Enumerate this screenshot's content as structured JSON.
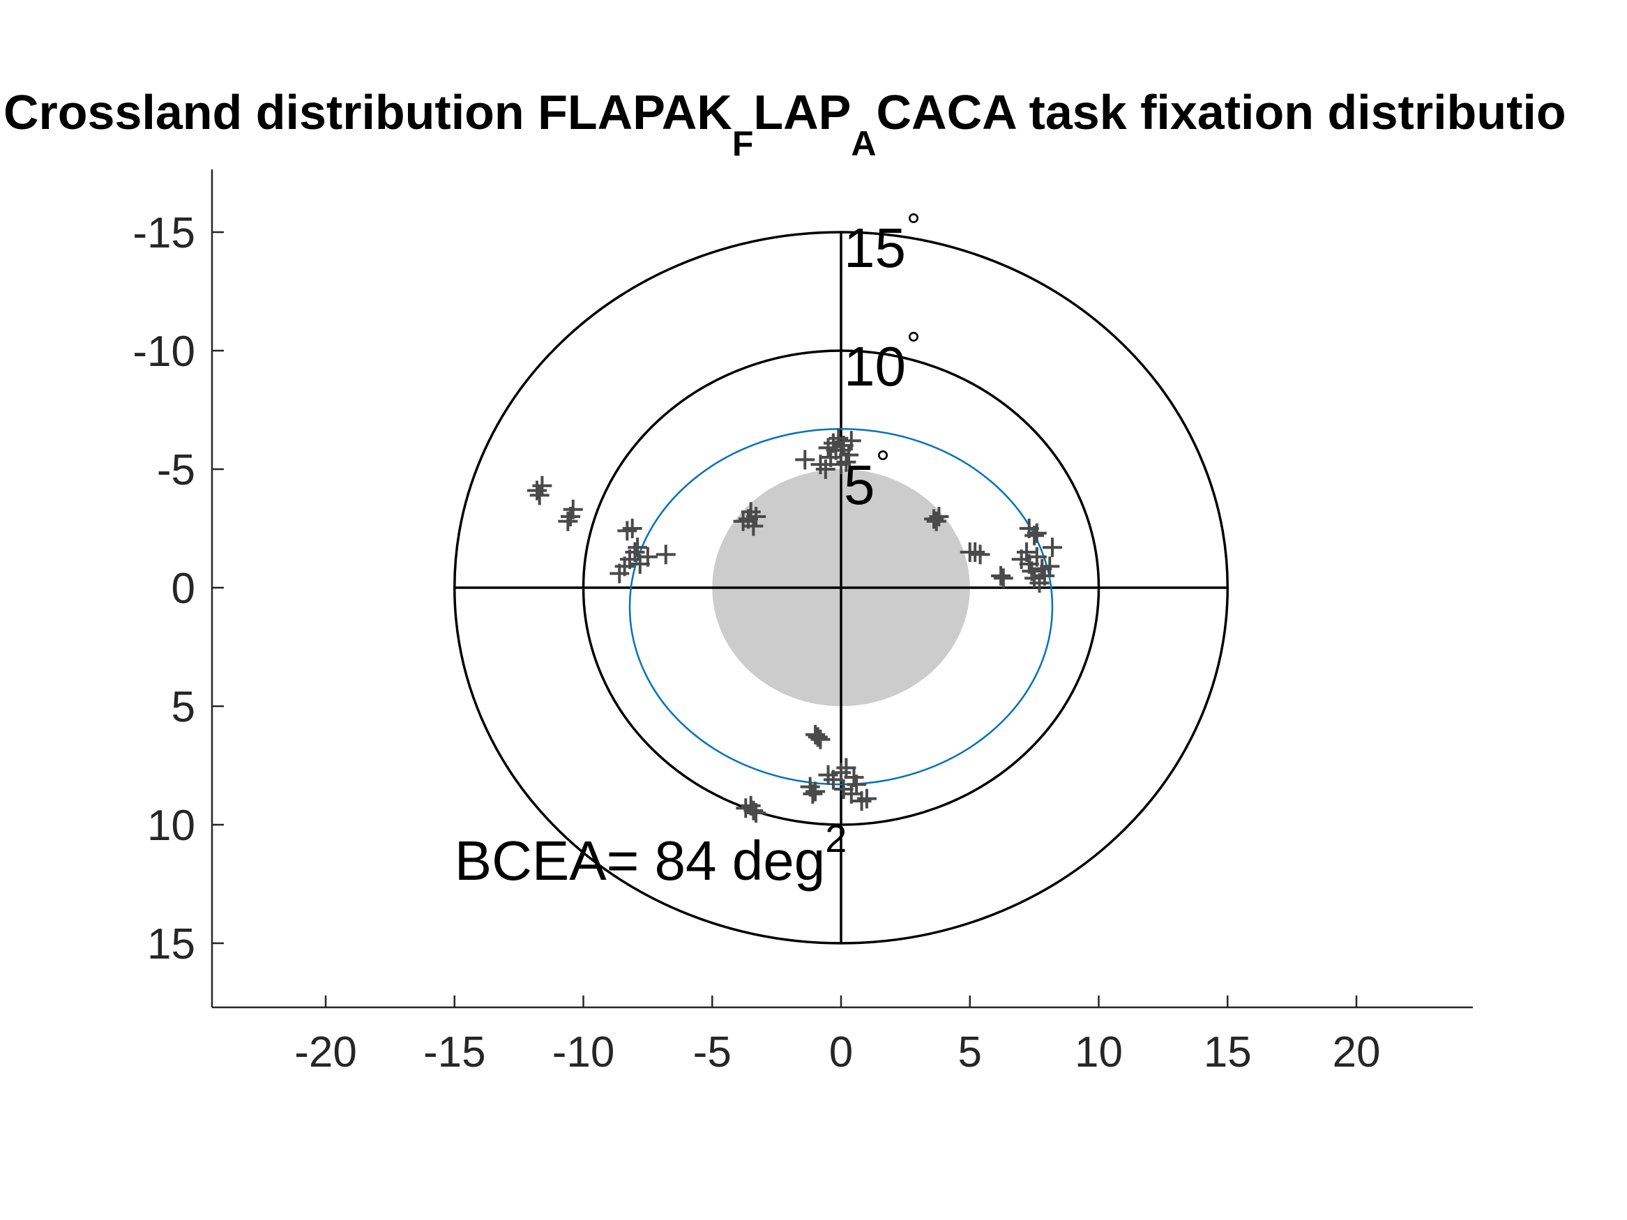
{
  "chart_data": {
    "type": "scatter",
    "title": {
      "parts": [
        {
          "text": "Crossland distribution FLAPAK",
          "sub": false
        },
        {
          "text": "F",
          "sub": true
        },
        {
          "text": "LAP",
          "sub": false
        },
        {
          "text": "A",
          "sub": true
        },
        {
          "text": "CACA task fixation distributio",
          "sub": false
        }
      ]
    },
    "xlabel": "",
    "ylabel": "",
    "xlim": [
      -24.5,
      24.5
    ],
    "ylim": [
      17.7,
      -17.7
    ],
    "y_axis_reversed": true,
    "grid": false,
    "x_ticks": [
      {
        "value": -20,
        "label": "-20"
      },
      {
        "value": -15,
        "label": "-15"
      },
      {
        "value": -10,
        "label": "-10"
      },
      {
        "value": -5,
        "label": "-5"
      },
      {
        "value": 0,
        "label": "0"
      },
      {
        "value": 5,
        "label": "5"
      },
      {
        "value": 10,
        "label": "10"
      },
      {
        "value": 15,
        "label": "15"
      },
      {
        "value": 20,
        "label": "20"
      }
    ],
    "y_ticks": [
      {
        "value": -15,
        "label": "-15"
      },
      {
        "value": -10,
        "label": "-10"
      },
      {
        "value": -5,
        "label": "-5"
      },
      {
        "value": 0,
        "label": "0"
      },
      {
        "value": 5,
        "label": "5"
      },
      {
        "value": 10,
        "label": "10"
      },
      {
        "value": 15,
        "label": "15"
      }
    ],
    "rings": [
      {
        "radius": 5,
        "label": "5",
        "degree_symbol": "°"
      },
      {
        "radius": 10,
        "label": "10",
        "degree_symbol": "°"
      },
      {
        "radius": 15,
        "label": "15",
        "degree_symbol": "°"
      }
    ],
    "central_disc": {
      "radius": 5,
      "color": "#cccccc"
    },
    "bcea_ellipse": {
      "cx": 0,
      "cy": 0.8,
      "rx": 8.2,
      "ry": 7.5,
      "color": "#0072BD"
    },
    "annotation": {
      "text": "BCEA= 84 deg",
      "sup": "2",
      "x": -15,
      "y": 11.5
    },
    "marker": "+",
    "marker_color": "#4a4a4a",
    "points": [
      [
        -0.2,
        -5.8
      ],
      [
        0.1,
        -6.0
      ],
      [
        -0.4,
        -5.5
      ],
      [
        0.0,
        -5.2
      ],
      [
        -0.6,
        -5.0
      ],
      [
        0.3,
        -5.6
      ],
      [
        -0.1,
        -6.3
      ],
      [
        0.2,
        -5.3
      ],
      [
        -0.3,
        -6.1
      ],
      [
        -1.4,
        -5.4
      ],
      [
        -0.8,
        -5.2
      ],
      [
        0.0,
        -5.8
      ],
      [
        -0.5,
        -5.9
      ],
      [
        0.4,
        -6.2
      ],
      [
        -3.5,
        -3.2
      ],
      [
        -3.6,
        -2.9
      ],
      [
        -3.4,
        -2.6
      ],
      [
        -3.8,
        -2.8
      ],
      [
        -3.3,
        -3.0
      ],
      [
        -8.6,
        -0.6
      ],
      [
        -8.2,
        -1.2
      ],
      [
        -8.0,
        -1.5
      ],
      [
        -7.8,
        -1.0
      ],
      [
        -7.5,
        -1.3
      ],
      [
        -7.9,
        -1.7
      ],
      [
        -6.8,
        -1.4
      ],
      [
        -8.3,
        -2.4
      ],
      [
        -8.1,
        -2.5
      ],
      [
        -8.4,
        -0.9
      ],
      [
        -10.5,
        -3.0
      ],
      [
        -10.6,
        -2.8
      ],
      [
        -10.4,
        -3.3
      ],
      [
        -11.7,
        -3.9
      ],
      [
        -11.8,
        -4.1
      ],
      [
        -11.6,
        -4.3
      ],
      [
        7.5,
        -0.4
      ],
      [
        7.8,
        -0.8
      ],
      [
        7.3,
        -1.0
      ],
      [
        7.6,
        -1.3
      ],
      [
        7.9,
        -0.5
      ],
      [
        7.2,
        -1.5
      ],
      [
        7.0,
        -1.2
      ],
      [
        8.1,
        -0.9
      ],
      [
        7.7,
        -0.2
      ],
      [
        7.4,
        -0.7
      ],
      [
        6.3,
        -0.4
      ],
      [
        6.2,
        -0.5
      ],
      [
        5.4,
        -1.4
      ],
      [
        5.2,
        -1.5
      ],
      [
        5.0,
        -1.5
      ],
      [
        8.2,
        -1.7
      ],
      [
        7.5,
        -2.2
      ],
      [
        7.3,
        -2.5
      ],
      [
        7.6,
        -2.3
      ],
      [
        3.7,
        -2.8
      ],
      [
        3.8,
        -3.0
      ],
      [
        3.6,
        -2.9
      ],
      [
        -0.9,
        6.3
      ],
      [
        -0.8,
        6.4
      ],
      [
        -1.0,
        6.2
      ],
      [
        0.0,
        7.8
      ],
      [
        0.5,
        8.0
      ],
      [
        -0.3,
        8.1
      ],
      [
        0.2,
        7.6
      ],
      [
        0.6,
        8.3
      ],
      [
        -1.2,
        8.4
      ],
      [
        -1.0,
        8.6
      ],
      [
        0.1,
        8.5
      ],
      [
        -0.5,
        7.9
      ],
      [
        0.8,
        9.0
      ],
      [
        1.0,
        8.9
      ],
      [
        0.4,
        8.7
      ],
      [
        -1.1,
        8.7
      ],
      [
        -3.5,
        9.2
      ],
      [
        -3.4,
        9.4
      ],
      [
        -3.3,
        9.5
      ],
      [
        -3.7,
        9.3
      ]
    ]
  }
}
